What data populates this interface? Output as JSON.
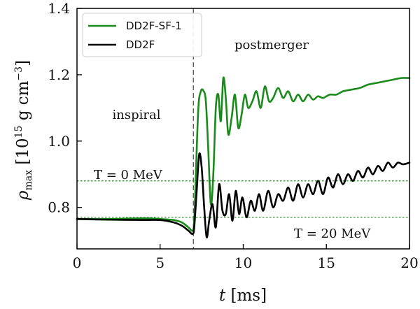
{
  "chart_data": {
    "type": "line",
    "xlabel": "t [ms]",
    "ylabel": "ρmax [10^15 g cm^-3]",
    "xlim": [
      0,
      20
    ],
    "ylim": [
      0.675,
      1.4
    ],
    "x_ticks": [
      0,
      5,
      10,
      15,
      20
    ],
    "x_tick_labels": [
      "0",
      "5",
      "10",
      "15",
      "20"
    ],
    "y_ticks": [
      0.8,
      1.0,
      1.2,
      1.4
    ],
    "y_tick_labels": [
      "0.8",
      "1.0",
      "1.2",
      "1.4"
    ],
    "grid": false,
    "legend": {
      "position": "top-left"
    },
    "series": [
      {
        "name": "DD2F-SF-1",
        "color": "#1a8a1a",
        "x": [
          0,
          2,
          4,
          5,
          5.8,
          6.3,
          6.7,
          6.95,
          7.05,
          7.15,
          7.3,
          7.45,
          7.6,
          7.75,
          7.9,
          8.05,
          8.2,
          8.35,
          8.5,
          8.65,
          8.8,
          8.95,
          9.1,
          9.3,
          9.5,
          9.7,
          9.9,
          10.1,
          10.3,
          10.55,
          10.8,
          11.05,
          11.3,
          11.55,
          11.8,
          12.1,
          12.4,
          12.7,
          13.0,
          13.3,
          13.6,
          13.9,
          14.2,
          14.5,
          14.8,
          15.2,
          15.6,
          16.0,
          16.5,
          17.0,
          17.5,
          18.0,
          18.5,
          19.0,
          19.5,
          20.0
        ],
        "y": [
          0.765,
          0.765,
          0.767,
          0.765,
          0.762,
          0.755,
          0.74,
          0.73,
          0.76,
          0.9,
          1.1,
          1.15,
          1.152,
          1.12,
          0.97,
          0.81,
          0.9,
          1.1,
          1.14,
          1.06,
          1.19,
          1.13,
          1.02,
          1.07,
          1.14,
          1.04,
          1.08,
          1.14,
          1.1,
          1.12,
          1.15,
          1.1,
          1.165,
          1.12,
          1.13,
          1.16,
          1.13,
          1.15,
          1.12,
          1.14,
          1.12,
          1.14,
          1.125,
          1.135,
          1.13,
          1.14,
          1.14,
          1.15,
          1.155,
          1.16,
          1.17,
          1.175,
          1.18,
          1.185,
          1.19,
          1.19
        ]
      },
      {
        "name": "DD2F",
        "color": "#000000",
        "x": [
          0,
          2,
          4,
          5,
          5.8,
          6.3,
          6.7,
          6.95,
          7.05,
          7.2,
          7.35,
          7.5,
          7.65,
          7.8,
          7.95,
          8.15,
          8.35,
          8.55,
          8.75,
          8.95,
          9.15,
          9.35,
          9.55,
          9.75,
          9.95,
          10.2,
          10.45,
          10.7,
          10.95,
          11.2,
          11.5,
          11.8,
          12.1,
          12.4,
          12.7,
          13.0,
          13.3,
          13.6,
          13.9,
          14.2,
          14.5,
          14.8,
          15.1,
          15.4,
          15.7,
          16.0,
          16.3,
          16.6,
          16.9,
          17.2,
          17.5,
          17.8,
          18.1,
          18.4,
          18.7,
          19.0,
          19.3,
          19.6,
          20.0
        ],
        "y": [
          0.765,
          0.763,
          0.762,
          0.762,
          0.755,
          0.745,
          0.73,
          0.72,
          0.74,
          0.85,
          0.96,
          0.92,
          0.8,
          0.71,
          0.76,
          0.81,
          0.74,
          0.87,
          0.79,
          0.78,
          0.84,
          0.76,
          0.85,
          0.78,
          0.83,
          0.77,
          0.82,
          0.79,
          0.84,
          0.79,
          0.85,
          0.8,
          0.84,
          0.82,
          0.86,
          0.82,
          0.87,
          0.83,
          0.87,
          0.84,
          0.88,
          0.84,
          0.89,
          0.86,
          0.9,
          0.87,
          0.9,
          0.88,
          0.91,
          0.89,
          0.92,
          0.9,
          0.925,
          0.91,
          0.935,
          0.92,
          0.935,
          0.93,
          0.935
        ]
      }
    ],
    "reference_lines": [
      {
        "type": "vertical",
        "x": 7.0,
        "color": "#444444",
        "style": "dashed"
      },
      {
        "type": "horizontal",
        "y": 0.88,
        "color": "#1a8a1a",
        "style": "dotted",
        "label": "T = 0 MeV"
      },
      {
        "type": "horizontal",
        "y": 0.77,
        "color": "#1a8a1a",
        "style": "dotted",
        "label": "T = 20 MeV"
      }
    ],
    "annotations": [
      "inspiral",
      "postmerger"
    ]
  }
}
